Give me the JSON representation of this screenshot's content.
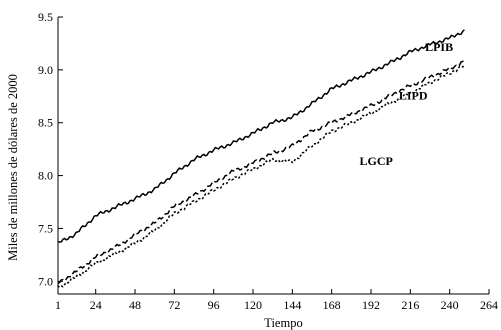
{
  "chart_data": {
    "type": "line",
    "title": "",
    "xlabel": "Tiempo",
    "ylabel": "Miles de millones de dólares de 2000",
    "xlim": [
      1,
      264
    ],
    "ylim": [
      6.88,
      9.5
    ],
    "xticks": [
      1,
      24,
      48,
      72,
      96,
      120,
      144,
      168,
      192,
      216,
      240,
      264
    ],
    "yticks": [
      7.0,
      7.5,
      8.0,
      8.5,
      9.0,
      9.5
    ],
    "ytick_labels": [
      "7.0",
      "7.5",
      "8.0",
      "8.5",
      "9.0",
      "9.5"
    ],
    "grid": false,
    "legend": "none",
    "series": [
      {
        "name": "LPIB",
        "style": "solid",
        "color": "#000000",
        "x": [
          1,
          12,
          24,
          36,
          48,
          60,
          72,
          84,
          96,
          108,
          120,
          132,
          144,
          156,
          168,
          180,
          192,
          204,
          216,
          228,
          240,
          249
        ],
        "y": [
          7.36,
          7.45,
          7.62,
          7.7,
          7.78,
          7.87,
          8.02,
          8.15,
          8.24,
          8.31,
          8.4,
          8.5,
          8.55,
          8.68,
          8.82,
          8.9,
          8.98,
          9.07,
          9.17,
          9.24,
          9.3,
          9.37
        ]
      },
      {
        "name": "LIPD",
        "style": "dashed",
        "color": "#000000",
        "x": [
          1,
          12,
          24,
          36,
          48,
          60,
          72,
          84,
          96,
          108,
          120,
          132,
          144,
          156,
          168,
          180,
          192,
          204,
          216,
          228,
          240,
          249
        ],
        "y": [
          6.98,
          7.09,
          7.23,
          7.32,
          7.44,
          7.55,
          7.71,
          7.81,
          7.93,
          8.04,
          8.12,
          8.21,
          8.28,
          8.42,
          8.5,
          8.58,
          8.66,
          8.76,
          8.85,
          8.93,
          9.01,
          9.08
        ]
      },
      {
        "name": "LGCP",
        "style": "dotted",
        "color": "#000000",
        "x": [
          1,
          12,
          24,
          36,
          48,
          60,
          72,
          84,
          96,
          108,
          120,
          132,
          144,
          156,
          168,
          180,
          192,
          204,
          216,
          228,
          240,
          249
        ],
        "y": [
          6.94,
          7.04,
          7.17,
          7.26,
          7.36,
          7.48,
          7.64,
          7.75,
          7.86,
          7.97,
          8.06,
          8.15,
          8.13,
          8.28,
          8.42,
          8.5,
          8.59,
          8.69,
          8.78,
          8.88,
          8.97,
          9.04
        ]
      }
    ],
    "annotations": [
      {
        "text": "LPIB",
        "x": 225,
        "y": 9.18
      },
      {
        "text": "LIPD",
        "x": 209,
        "y": 8.72
      },
      {
        "text": "LGCP",
        "x": 185,
        "y": 8.1
      }
    ]
  }
}
